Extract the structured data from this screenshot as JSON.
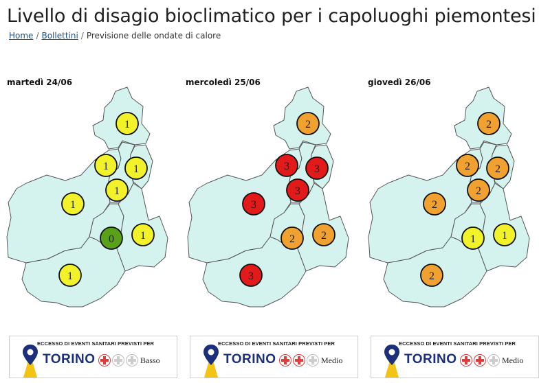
{
  "page": {
    "title": "Livello di disagio bioclimatico per i capoluoghi piemontesi"
  },
  "breadcrumb": {
    "home": "Home",
    "bollettini": "Bollettini",
    "current": "Previsione delle ondate di calore",
    "separator": "/"
  },
  "colors": {
    "region_fill": "#d4f2ee",
    "region_stroke": "#555555",
    "level_0": "#5aa11a",
    "level_1": "#f2f22a",
    "level_2": "#f0a130",
    "level_3": "#e31a1a",
    "brand_blue": "#1c2f7a",
    "cross_red": "#e23b3b"
  },
  "days": [
    {
      "label": "martedì 24/06",
      "levels": {
        "VB": "1",
        "BI": "1",
        "NO": "1",
        "VC": "1",
        "TO": "1",
        "AT": "0",
        "AL": "1",
        "CN": "1"
      },
      "banner": {
        "header": "ECCESSO DI EVENTI SANITARI PREVISTI PER",
        "city": "TORINO",
        "active_crosses": 1,
        "level": "Basso"
      }
    },
    {
      "label": "mercoledì 25/06",
      "levels": {
        "VB": "2",
        "BI": "3",
        "NO": "3",
        "VC": "3",
        "TO": "3",
        "AT": "2",
        "AL": "2",
        "CN": "3"
      },
      "banner": {
        "header": "ECCESSO DI EVENTI SANITARI PREVISTI PER",
        "city": "TORINO",
        "active_crosses": 2,
        "level": "Medio"
      }
    },
    {
      "label": "giovedì 26/06",
      "levels": {
        "VB": "2",
        "BI": "2",
        "NO": "2",
        "VC": "2",
        "TO": "2",
        "AT": "1",
        "AL": "1",
        "CN": "2"
      },
      "banner": {
        "header": "ECCESSO DI EVENTI SANITARI PREVISTI PER",
        "city": "TORINO",
        "active_crosses": 2,
        "level": "Medio"
      }
    }
  ]
}
